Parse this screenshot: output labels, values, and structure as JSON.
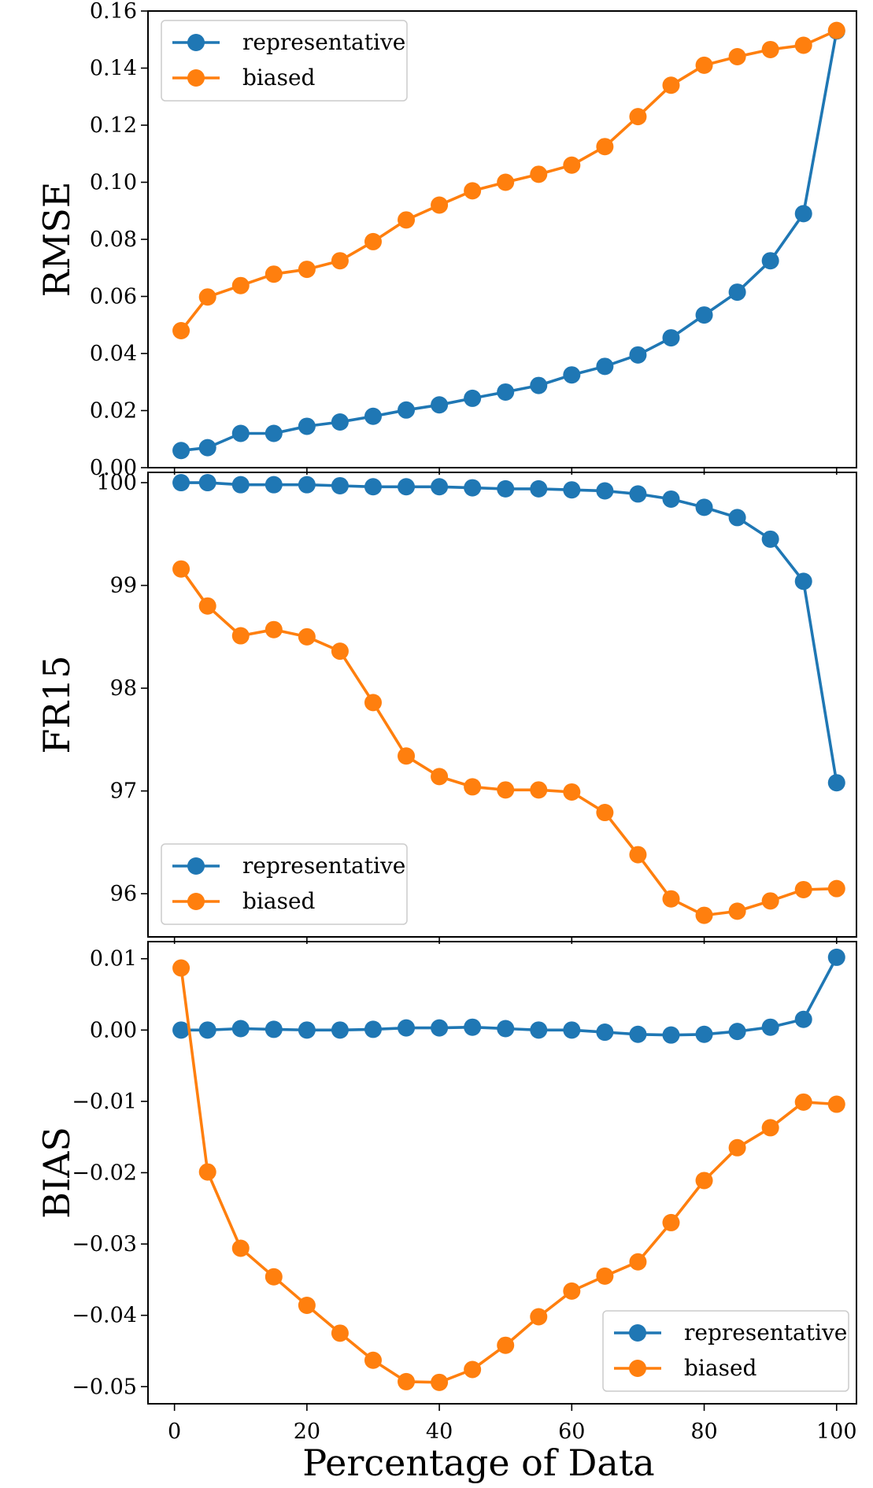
{
  "chart_data": [
    {
      "type": "line",
      "ylabel": "RMSE",
      "ylim": [
        0,
        0.16
      ],
      "yticks": [
        0.0,
        0.02,
        0.04,
        0.06,
        0.08,
        0.1,
        0.12,
        0.14,
        0.16
      ],
      "ytick_labels": [
        "0.00",
        "0.02",
        "0.04",
        "0.06",
        "0.08",
        "0.10",
        "0.12",
        "0.14",
        "0.16"
      ],
      "legend_position": "top-left",
      "x": [
        1,
        5,
        10,
        15,
        20,
        25,
        30,
        35,
        40,
        45,
        50,
        55,
        60,
        65,
        70,
        75,
        80,
        85,
        90,
        95,
        100
      ],
      "series": [
        {
          "name": "representative",
          "color": "#1f77b4",
          "values": [
            0.006,
            0.007,
            0.012,
            0.012,
            0.0145,
            0.016,
            0.018,
            0.0202,
            0.022,
            0.0243,
            0.0265,
            0.0288,
            0.0325,
            0.0355,
            0.0395,
            0.0455,
            0.0535,
            0.0615,
            0.0725,
            0.089,
            0.153
          ]
        },
        {
          "name": "biased",
          "color": "#ff7f0e",
          "values": [
            0.048,
            0.0598,
            0.0638,
            0.0678,
            0.0695,
            0.0725,
            0.0792,
            0.0868,
            0.092,
            0.097,
            0.1,
            0.1028,
            0.106,
            0.1125,
            0.123,
            0.134,
            0.141,
            0.144,
            0.1465,
            0.148,
            0.1532
          ]
        }
      ]
    },
    {
      "type": "line",
      "ylabel": "FR15",
      "ylim": [
        95.58,
        100.1
      ],
      "yticks": [
        96,
        97,
        98,
        99,
        100
      ],
      "ytick_labels": [
        "96",
        "97",
        "98",
        "99",
        "100"
      ],
      "legend_position": "bottom-left",
      "x": [
        1,
        5,
        10,
        15,
        20,
        25,
        30,
        35,
        40,
        45,
        50,
        55,
        60,
        65,
        70,
        75,
        80,
        85,
        90,
        95,
        100
      ],
      "series": [
        {
          "name": "representative",
          "color": "#1f77b4",
          "values": [
            100.0,
            100.0,
            99.98,
            99.98,
            99.98,
            99.97,
            99.96,
            99.96,
            99.96,
            99.95,
            99.94,
            99.94,
            99.93,
            99.92,
            99.89,
            99.84,
            99.76,
            99.66,
            99.45,
            99.04,
            97.08
          ]
        },
        {
          "name": "biased",
          "color": "#ff7f0e",
          "values": [
            99.16,
            98.8,
            98.51,
            98.57,
            98.5,
            98.36,
            97.86,
            97.34,
            97.14,
            97.04,
            97.01,
            97.01,
            96.99,
            96.79,
            96.38,
            95.95,
            95.79,
            95.83,
            95.93,
            96.04,
            96.05
          ]
        }
      ]
    },
    {
      "type": "line",
      "ylabel": "BIAS",
      "xlabel": "Percentage of Data",
      "ylim": [
        -0.0524,
        0.0124
      ],
      "yticks": [
        -0.05,
        -0.04,
        -0.03,
        -0.02,
        -0.01,
        0.0,
        0.01
      ],
      "ytick_labels": [
        "−0.05",
        "−0.04",
        "−0.03",
        "−0.02",
        "−0.01",
        "0.00",
        "0.01"
      ],
      "xlim": [
        -4,
        103
      ],
      "xticks": [
        0,
        20,
        40,
        60,
        80,
        100
      ],
      "xtick_labels": [
        "0",
        "20",
        "40",
        "60",
        "80",
        "100"
      ],
      "legend_position": "bottom-right",
      "x": [
        1,
        5,
        10,
        15,
        20,
        25,
        30,
        35,
        40,
        45,
        50,
        55,
        60,
        65,
        70,
        75,
        80,
        85,
        90,
        95,
        100
      ],
      "series": [
        {
          "name": "representative",
          "color": "#1f77b4",
          "values": [
            0.0,
            0.0,
            0.0002,
            0.0001,
            0.0,
            0.0,
            0.0001,
            0.0003,
            0.0003,
            0.0004,
            0.0002,
            0.0,
            0.0,
            -0.0003,
            -0.0006,
            -0.0007,
            -0.0006,
            -0.0002,
            0.0004,
            0.0015,
            0.0102
          ]
        },
        {
          "name": "biased",
          "color": "#ff7f0e",
          "values": [
            0.0087,
            -0.0199,
            -0.0306,
            -0.0346,
            -0.0386,
            -0.0425,
            -0.0463,
            -0.0493,
            -0.0494,
            -0.0476,
            -0.0442,
            -0.0402,
            -0.0366,
            -0.0345,
            -0.0325,
            -0.027,
            -0.0211,
            -0.0165,
            -0.0137,
            -0.0101,
            -0.0104
          ]
        }
      ]
    }
  ]
}
